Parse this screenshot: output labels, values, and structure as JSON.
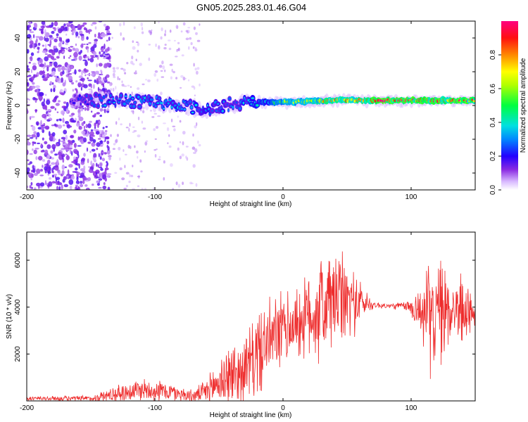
{
  "title": "GN05.2025.283.01.46.G04",
  "chart_data": [
    {
      "type": "heatmap",
      "name": "spectrogram",
      "xlabel": "Height of straight line (km)",
      "ylabel": "Frequency (Hz)",
      "xlim": [
        -200,
        150
      ],
      "ylim": [
        -50,
        50
      ],
      "xticks": [
        {
          "value": -200,
          "label": "-200"
        },
        {
          "value": -100,
          "label": "-100"
        },
        {
          "value": 0,
          "label": "0"
        },
        {
          "value": 100,
          "label": "100"
        }
      ],
      "yticks": [
        {
          "value": -40,
          "label": "-40"
        },
        {
          "value": -20,
          "label": "-20"
        },
        {
          "value": 0,
          "label": "0"
        },
        {
          "value": 20,
          "label": "20"
        },
        {
          "value": 40,
          "label": "40"
        }
      ],
      "signal_track": [
        {
          "x": -165,
          "f": 3,
          "amp": 0.2
        },
        {
          "x": -140,
          "f": 3,
          "amp": 0.3
        },
        {
          "x": -120,
          "f": 3,
          "amp": 0.35
        },
        {
          "x": -100,
          "f": 2,
          "amp": 0.35
        },
        {
          "x": -80,
          "f": 0,
          "amp": 0.35
        },
        {
          "x": -60,
          "f": -3,
          "amp": 0.35
        },
        {
          "x": -40,
          "f": 1,
          "amp": 0.3
        },
        {
          "x": -20,
          "f": 2,
          "amp": 0.4
        },
        {
          "x": 0,
          "f": 2,
          "amp": 0.6
        },
        {
          "x": 40,
          "f": 3,
          "amp": 0.8
        },
        {
          "x": 80,
          "f": 3,
          "amp": 0.95
        },
        {
          "x": 150,
          "f": 3,
          "amp": 0.95
        }
      ],
      "colorbar": {
        "label": "Normalized spectral amplitude",
        "range": [
          0,
          1
        ],
        "ticks": [
          {
            "value": 0.0,
            "label": "0.0"
          },
          {
            "value": 0.2,
            "label": "0.2"
          },
          {
            "value": 0.4,
            "label": "0.4"
          },
          {
            "value": 0.6,
            "label": "0.6"
          },
          {
            "value": 0.8,
            "label": "0.8"
          }
        ]
      }
    },
    {
      "type": "line",
      "name": "snr",
      "xlabel": "Height of straight line (km)",
      "ylabel": "SNR (10 * v/v)",
      "xlim": [
        -200,
        150
      ],
      "ylim": [
        0,
        7200
      ],
      "color": "#ee2c2c",
      "xticks": [
        {
          "value": -200,
          "label": "-200"
        },
        {
          "value": -100,
          "label": "-100"
        },
        {
          "value": 0,
          "label": "0"
        },
        {
          "value": 100,
          "label": "100"
        }
      ],
      "yticks": [
        {
          "value": 2000,
          "label": "2000"
        },
        {
          "value": 4000,
          "label": "4000"
        },
        {
          "value": 6000,
          "label": "6000"
        }
      ],
      "envelope": [
        {
          "x": -200,
          "mean": 100,
          "amp": 120
        },
        {
          "x": -150,
          "mean": 100,
          "amp": 150
        },
        {
          "x": -130,
          "mean": 300,
          "amp": 450
        },
        {
          "x": -110,
          "mean": 500,
          "amp": 600
        },
        {
          "x": -90,
          "mean": 400,
          "amp": 500
        },
        {
          "x": -70,
          "mean": 200,
          "amp": 300
        },
        {
          "x": -60,
          "mean": 400,
          "amp": 600
        },
        {
          "x": -45,
          "mean": 1000,
          "amp": 1600
        },
        {
          "x": -30,
          "mean": 1300,
          "amp": 1800
        },
        {
          "x": -20,
          "mean": 2000,
          "amp": 2200
        },
        {
          "x": -10,
          "mean": 2600,
          "amp": 2000
        },
        {
          "x": 0,
          "mean": 3000,
          "amp": 2000
        },
        {
          "x": 10,
          "mean": 3300,
          "amp": 1800
        },
        {
          "x": 20,
          "mean": 3600,
          "amp": 2200
        },
        {
          "x": 30,
          "mean": 4000,
          "amp": 3000
        },
        {
          "x": 40,
          "mean": 4300,
          "amp": 2700
        },
        {
          "x": 50,
          "mean": 4300,
          "amp": 2200
        },
        {
          "x": 60,
          "mean": 4200,
          "amp": 1200
        },
        {
          "x": 70,
          "mean": 4100,
          "amp": 200
        },
        {
          "x": 80,
          "mean": 4050,
          "amp": 150
        },
        {
          "x": 95,
          "mean": 4050,
          "amp": 200
        },
        {
          "x": 105,
          "mean": 3900,
          "amp": 1000
        },
        {
          "x": 115,
          "mean": 3600,
          "amp": 2800
        },
        {
          "x": 125,
          "mean": 3800,
          "amp": 2600
        },
        {
          "x": 135,
          "mean": 4000,
          "amp": 1300
        },
        {
          "x": 140,
          "mean": 3800,
          "amp": 2000
        },
        {
          "x": 150,
          "mean": 3800,
          "amp": 600
        }
      ]
    }
  ]
}
